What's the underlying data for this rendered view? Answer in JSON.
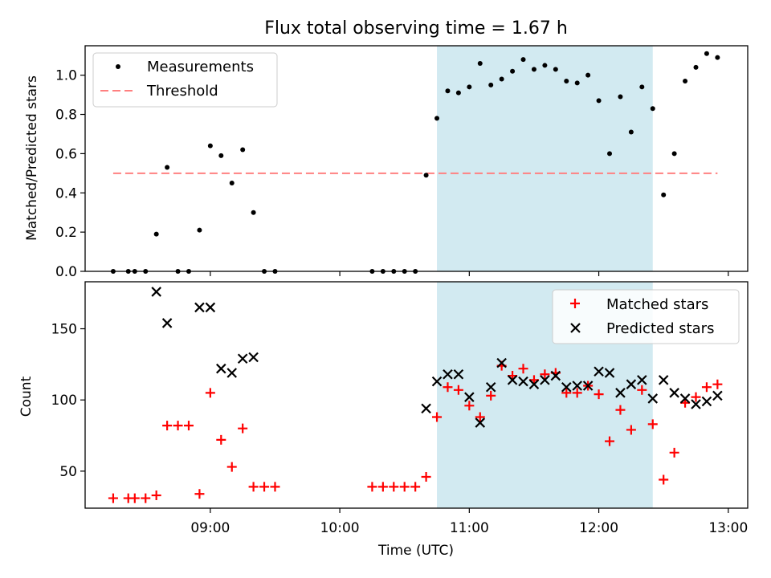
{
  "chart_data": [
    {
      "type": "scatter",
      "title": "Flux total observing time = 1.67 h",
      "xlabel": "",
      "ylabel": "Matched/Predicted stars",
      "xlim": [
        "08:02",
        "13:09"
      ],
      "ylim": [
        0,
        1.15
      ],
      "yticks": [
        "0.0",
        "0.2",
        "0.4",
        "0.6",
        "0.8",
        "1.0"
      ],
      "x_tick_times": [
        "09:00",
        "10:00",
        "11:00",
        "12:00",
        "13:00"
      ],
      "shaded_interval": [
        "10:45",
        "12:25"
      ],
      "shaded_color": "#add8e6",
      "grid": false,
      "legend_position": "upper left",
      "legend": [
        {
          "label": "Measurements",
          "marker": "dot",
          "color": "#000000"
        },
        {
          "label": "Threshold",
          "marker": "dashed-line",
          "color": "#ff8080"
        }
      ],
      "threshold": {
        "value": 0.5,
        "x_range": [
          "08:15",
          "12:55"
        ]
      },
      "series": [
        {
          "name": "Measurements",
          "x": [
            "08:15",
            "08:22",
            "08:25",
            "08:30",
            "08:35",
            "08:40",
            "08:45",
            "08:50",
            "08:55",
            "09:00",
            "09:05",
            "09:10",
            "09:15",
            "09:20",
            "09:25",
            "09:30",
            "10:15",
            "10:20",
            "10:25",
            "10:30",
            "10:35",
            "10:40",
            "10:45",
            "10:50",
            "10:55",
            "11:00",
            "11:05",
            "11:10",
            "11:15",
            "11:20",
            "11:25",
            "11:30",
            "11:35",
            "11:40",
            "11:45",
            "11:50",
            "11:55",
            "12:00",
            "12:05",
            "12:10",
            "12:15",
            "12:20",
            "12:25",
            "12:30",
            "12:35",
            "12:40",
            "12:45",
            "12:50",
            "12:55"
          ],
          "y": [
            0,
            0,
            0,
            0,
            0.19,
            0.53,
            0,
            0,
            0.21,
            0.64,
            0.59,
            0.45,
            0.62,
            0.3,
            0,
            0,
            0,
            0,
            0,
            0,
            0,
            0.49,
            0.78,
            0.92,
            0.91,
            0.94,
            1.06,
            0.95,
            0.98,
            1.02,
            1.08,
            1.03,
            1.05,
            1.03,
            0.97,
            0.96,
            1.0,
            0.87,
            0.6,
            0.89,
            0.71,
            0.94,
            0.83,
            0.39,
            0.6,
            0.97,
            1.04,
            1.11,
            1.09
          ],
          "color": "#000000"
        }
      ]
    },
    {
      "type": "scatter",
      "title": "",
      "xlabel": "Time (UTC)",
      "ylabel": "Count",
      "xlim": [
        "08:02",
        "13:09"
      ],
      "ylim": [
        24,
        183
      ],
      "yticks": [
        "50",
        "100",
        "150"
      ],
      "x_tick_labels": [
        "09:00",
        "10:00",
        "11:00",
        "12:00",
        "13:00"
      ],
      "shaded_interval": [
        "10:45",
        "12:25"
      ],
      "shaded_color": "#add8e6",
      "grid": false,
      "legend_position": "upper right",
      "legend": [
        {
          "label": "Matched stars",
          "marker": "plus",
          "color": "#ff0000"
        },
        {
          "label": "Predicted stars",
          "marker": "x",
          "color": "#000000"
        }
      ],
      "series": [
        {
          "name": "Matched stars",
          "marker": "plus",
          "color": "#ff0000",
          "x": [
            "08:15",
            "08:22",
            "08:25",
            "08:30",
            "08:35",
            "08:40",
            "08:45",
            "08:50",
            "08:55",
            "09:00",
            "09:05",
            "09:10",
            "09:15",
            "09:20",
            "09:25",
            "09:30",
            "10:15",
            "10:20",
            "10:25",
            "10:30",
            "10:35",
            "10:40",
            "10:45",
            "10:50",
            "10:55",
            "11:00",
            "11:05",
            "11:10",
            "11:15",
            "11:20",
            "11:25",
            "11:30",
            "11:35",
            "11:40",
            "11:45",
            "11:50",
            "11:55",
            "12:00",
            "12:05",
            "12:10",
            "12:15",
            "12:20",
            "12:25",
            "12:30",
            "12:35",
            "12:40",
            "12:45",
            "12:50",
            "12:55"
          ],
          "y": [
            31,
            31,
            31,
            31,
            33,
            82,
            82,
            82,
            34,
            105,
            72,
            53,
            80,
            39,
            39,
            39,
            39,
            39,
            39,
            39,
            39,
            46,
            88,
            109,
            107,
            96,
            88,
            103,
            124,
            117,
            122,
            114,
            118,
            119,
            105,
            105,
            110,
            104,
            71,
            93,
            79,
            107,
            83,
            44,
            63,
            98,
            102,
            109,
            111
          ]
        },
        {
          "name": "Predicted stars",
          "marker": "x",
          "color": "#000000",
          "x": [
            "08:35",
            "08:40",
            "08:55",
            "09:00",
            "09:05",
            "09:10",
            "09:15",
            "09:20",
            "10:40",
            "10:45",
            "10:50",
            "10:55",
            "11:00",
            "11:05",
            "11:10",
            "11:15",
            "11:20",
            "11:25",
            "11:30",
            "11:35",
            "11:40",
            "11:45",
            "11:50",
            "11:55",
            "12:00",
            "12:05",
            "12:10",
            "12:15",
            "12:20",
            "12:25",
            "12:30",
            "12:35",
            "12:40",
            "12:45",
            "12:50",
            "12:55"
          ],
          "y": [
            176,
            154,
            165,
            165,
            122,
            119,
            129,
            130,
            94,
            113,
            118,
            118,
            102,
            84,
            109,
            126,
            114,
            113,
            111,
            114,
            117,
            109,
            110,
            110,
            120,
            119,
            105,
            111,
            114,
            101,
            114,
            105,
            101,
            97,
            99,
            103
          ]
        }
      ]
    }
  ]
}
